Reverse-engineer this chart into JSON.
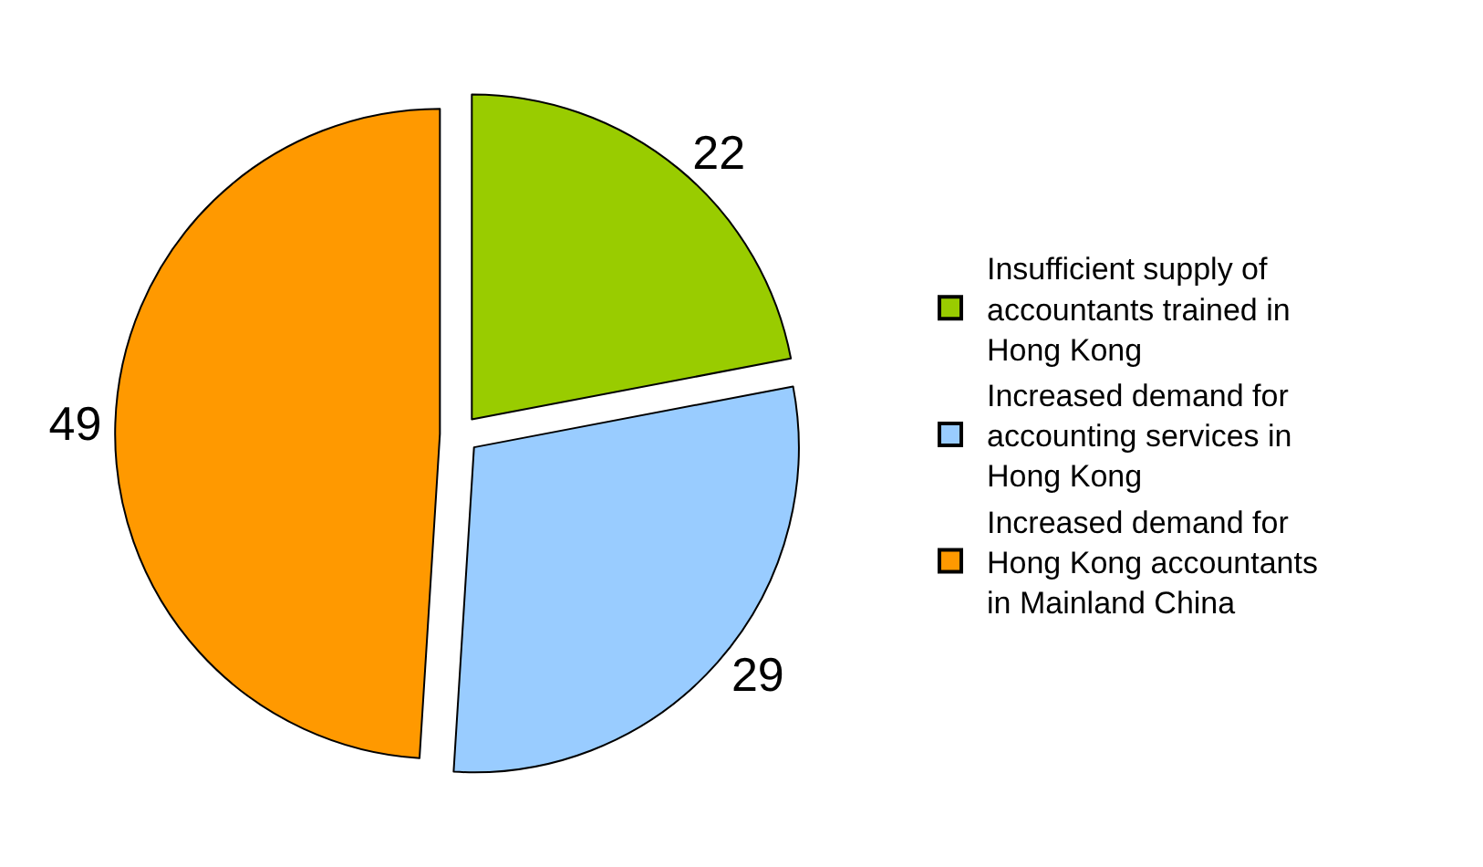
{
  "chart_data": {
    "type": "pie",
    "categories": [
      "Insufficient supply of accountants trained in Hong Kong",
      "Increased demand for accounting services in Hong Kong",
      "Increased demand for Hong Kong accountants in Mainland China"
    ],
    "values": [
      22,
      29,
      49
    ],
    "colors": [
      "#99cc00",
      "#99ccff",
      "#ff9900"
    ],
    "data_labels": true,
    "legend": "right"
  }
}
